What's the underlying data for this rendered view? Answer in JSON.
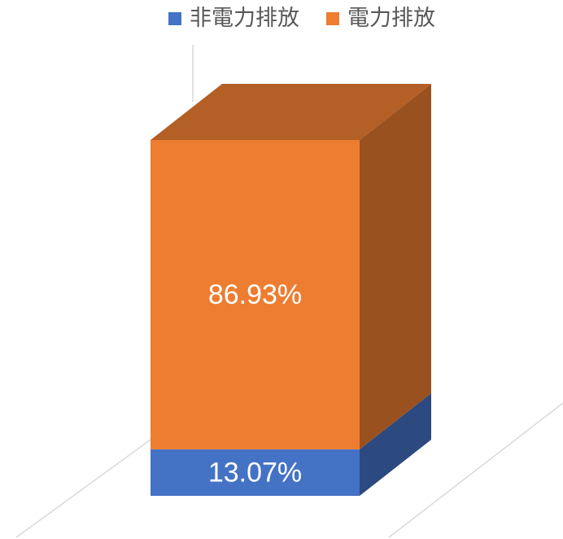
{
  "chart_data": {
    "type": "bar3d_stacked",
    "categories": [
      null
    ],
    "series": [
      {
        "name": "非電力排放",
        "color": "#4472c4",
        "values": [
          13.07
        ],
        "value_labels": [
          "13.07%"
        ]
      },
      {
        "name": "電力排放",
        "color": "#ed7d31",
        "values": [
          86.93
        ],
        "value_labels": [
          "86.93%"
        ]
      }
    ],
    "legend": "top"
  }
}
